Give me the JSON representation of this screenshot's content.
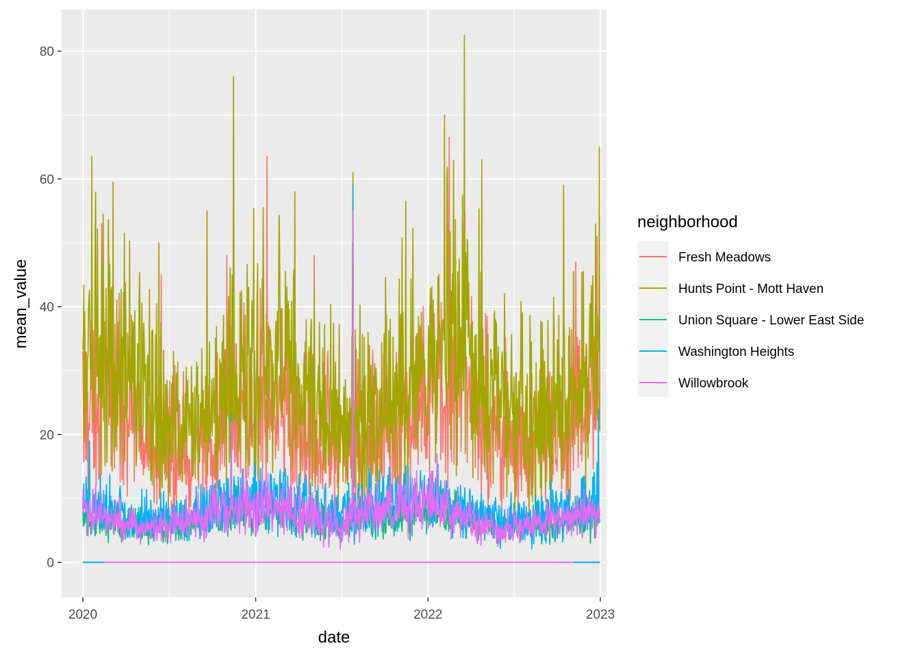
{
  "chart_data": {
    "type": "line",
    "title": "",
    "xlabel": "date",
    "ylabel": "mean_value",
    "xlim": [
      "2019-11-17",
      "2023-01-14"
    ],
    "ylim": [
      -5.5,
      86.5
    ],
    "x_ticks": [
      "2020",
      "2021",
      "2022",
      "2023"
    ],
    "x_tick_dates": [
      "2020-01-01",
      "2021-01-01",
      "2022-01-01",
      "2023-01-01"
    ],
    "y_ticks": [
      0,
      20,
      40,
      60,
      80
    ],
    "grid": true,
    "legend": {
      "title": "neighborhood",
      "position": "right"
    },
    "x_range": [
      "2020-01-01",
      "2022-12-31"
    ],
    "series": [
      {
        "name": "Fresh Meadows",
        "color": "#F8766D",
        "profile": {
          "dates": [
            "2020-01-01",
            "2020-03-01",
            "2020-06-01",
            "2020-09-01",
            "2021-01-01",
            "2021-03-01",
            "2021-06-01",
            "2021-09-01",
            "2022-01-01",
            "2022-03-01",
            "2022-06-01",
            "2022-09-01",
            "2022-12-31"
          ],
          "typical": [
            25,
            26,
            18,
            16,
            24,
            23,
            18,
            19,
            24,
            28,
            20,
            17,
            24
          ],
          "spread": [
            12,
            12,
            9,
            8,
            12,
            11,
            9,
            9,
            12,
            13,
            10,
            9,
            12
          ]
        },
        "peaks": [
          [
            "2020-02-10",
            53
          ],
          [
            "2020-06-15",
            45
          ],
          [
            "2020-11-01",
            48
          ],
          [
            "2021-01-25",
            63.5
          ],
          [
            "2021-05-05",
            48
          ],
          [
            "2021-07-25",
            50
          ],
          [
            "2022-02-15",
            66.5
          ],
          [
            "2022-03-20",
            55
          ],
          [
            "2022-11-10",
            47
          ],
          [
            "2022-12-25",
            51
          ]
        ]
      },
      {
        "name": "Hunts Point - Mott Haven",
        "color": "#A3A500",
        "profile": {
          "dates": [
            "2020-01-01",
            "2020-03-01",
            "2020-06-01",
            "2020-09-01",
            "2021-01-01",
            "2021-03-01",
            "2021-06-01",
            "2021-09-01",
            "2022-01-01",
            "2022-03-01",
            "2022-06-01",
            "2022-09-01",
            "2022-12-31"
          ],
          "typical": [
            30,
            32,
            22,
            20,
            30,
            29,
            22,
            23,
            30,
            35,
            25,
            21,
            30
          ],
          "spread": [
            16,
            16,
            11,
            10,
            16,
            15,
            11,
            12,
            16,
            18,
            13,
            11,
            16
          ]
        },
        "peaks": [
          [
            "2020-01-20",
            63.5
          ],
          [
            "2020-03-05",
            59.5
          ],
          [
            "2020-06-10",
            50
          ],
          [
            "2020-09-20",
            55
          ],
          [
            "2020-11-15",
            76
          ],
          [
            "2021-03-25",
            58
          ],
          [
            "2021-07-26",
            61
          ],
          [
            "2021-11-15",
            56.5
          ],
          [
            "2022-02-05",
            70
          ],
          [
            "2022-03-19",
            82.5
          ],
          [
            "2022-04-25",
            63
          ],
          [
            "2022-10-15",
            59
          ],
          [
            "2022-12-30",
            65
          ]
        ]
      },
      {
        "name": "Union Square - Lower East Side",
        "color": "#00BF7D",
        "profile": {
          "dates": [
            "2020-01-01",
            "2020-06-01",
            "2021-01-01",
            "2021-06-01",
            "2022-01-01",
            "2022-06-01",
            "2022-12-31"
          ],
          "typical": [
            7,
            5,
            8,
            6,
            8,
            5,
            7
          ],
          "spread": [
            3,
            2,
            3,
            3,
            3,
            2,
            3
          ]
        },
        "peaks": [
          [
            "2021-07-25",
            20
          ]
        ]
      },
      {
        "name": "Washington Heights",
        "color": "#00B0F6",
        "profile": {
          "dates": [
            "2020-01-01",
            "2020-06-01",
            "2021-01-01",
            "2021-06-01",
            "2022-01-01",
            "2022-06-01",
            "2022-12-31"
          ],
          "typical": [
            9,
            6,
            10,
            7,
            10,
            6,
            9
          ],
          "spread": [
            4,
            3,
            4,
            4,
            4,
            3,
            4
          ]
        },
        "peaks": [
          [
            "2020-01-15",
            19
          ],
          [
            "2020-11-10",
            23
          ],
          [
            "2021-07-26",
            59
          ],
          [
            "2022-12-28",
            24
          ]
        ]
      },
      {
        "name": "Willowbrook",
        "color": "#E76BF3",
        "profile": {
          "dates": [
            "2020-01-01",
            "2020-06-01",
            "2021-01-01",
            "2021-06-01",
            "2022-01-01",
            "2022-06-01",
            "2022-12-31"
          ],
          "typical": [
            8,
            5,
            9,
            6,
            9,
            5,
            8
          ],
          "spread": [
            3,
            2,
            4,
            3,
            4,
            2,
            3
          ]
        },
        "peaks": [
          [
            "2020-11-10",
            22
          ],
          [
            "2021-07-26",
            55
          ],
          [
            "2022-01-20",
            17
          ]
        ]
      }
    ]
  }
}
